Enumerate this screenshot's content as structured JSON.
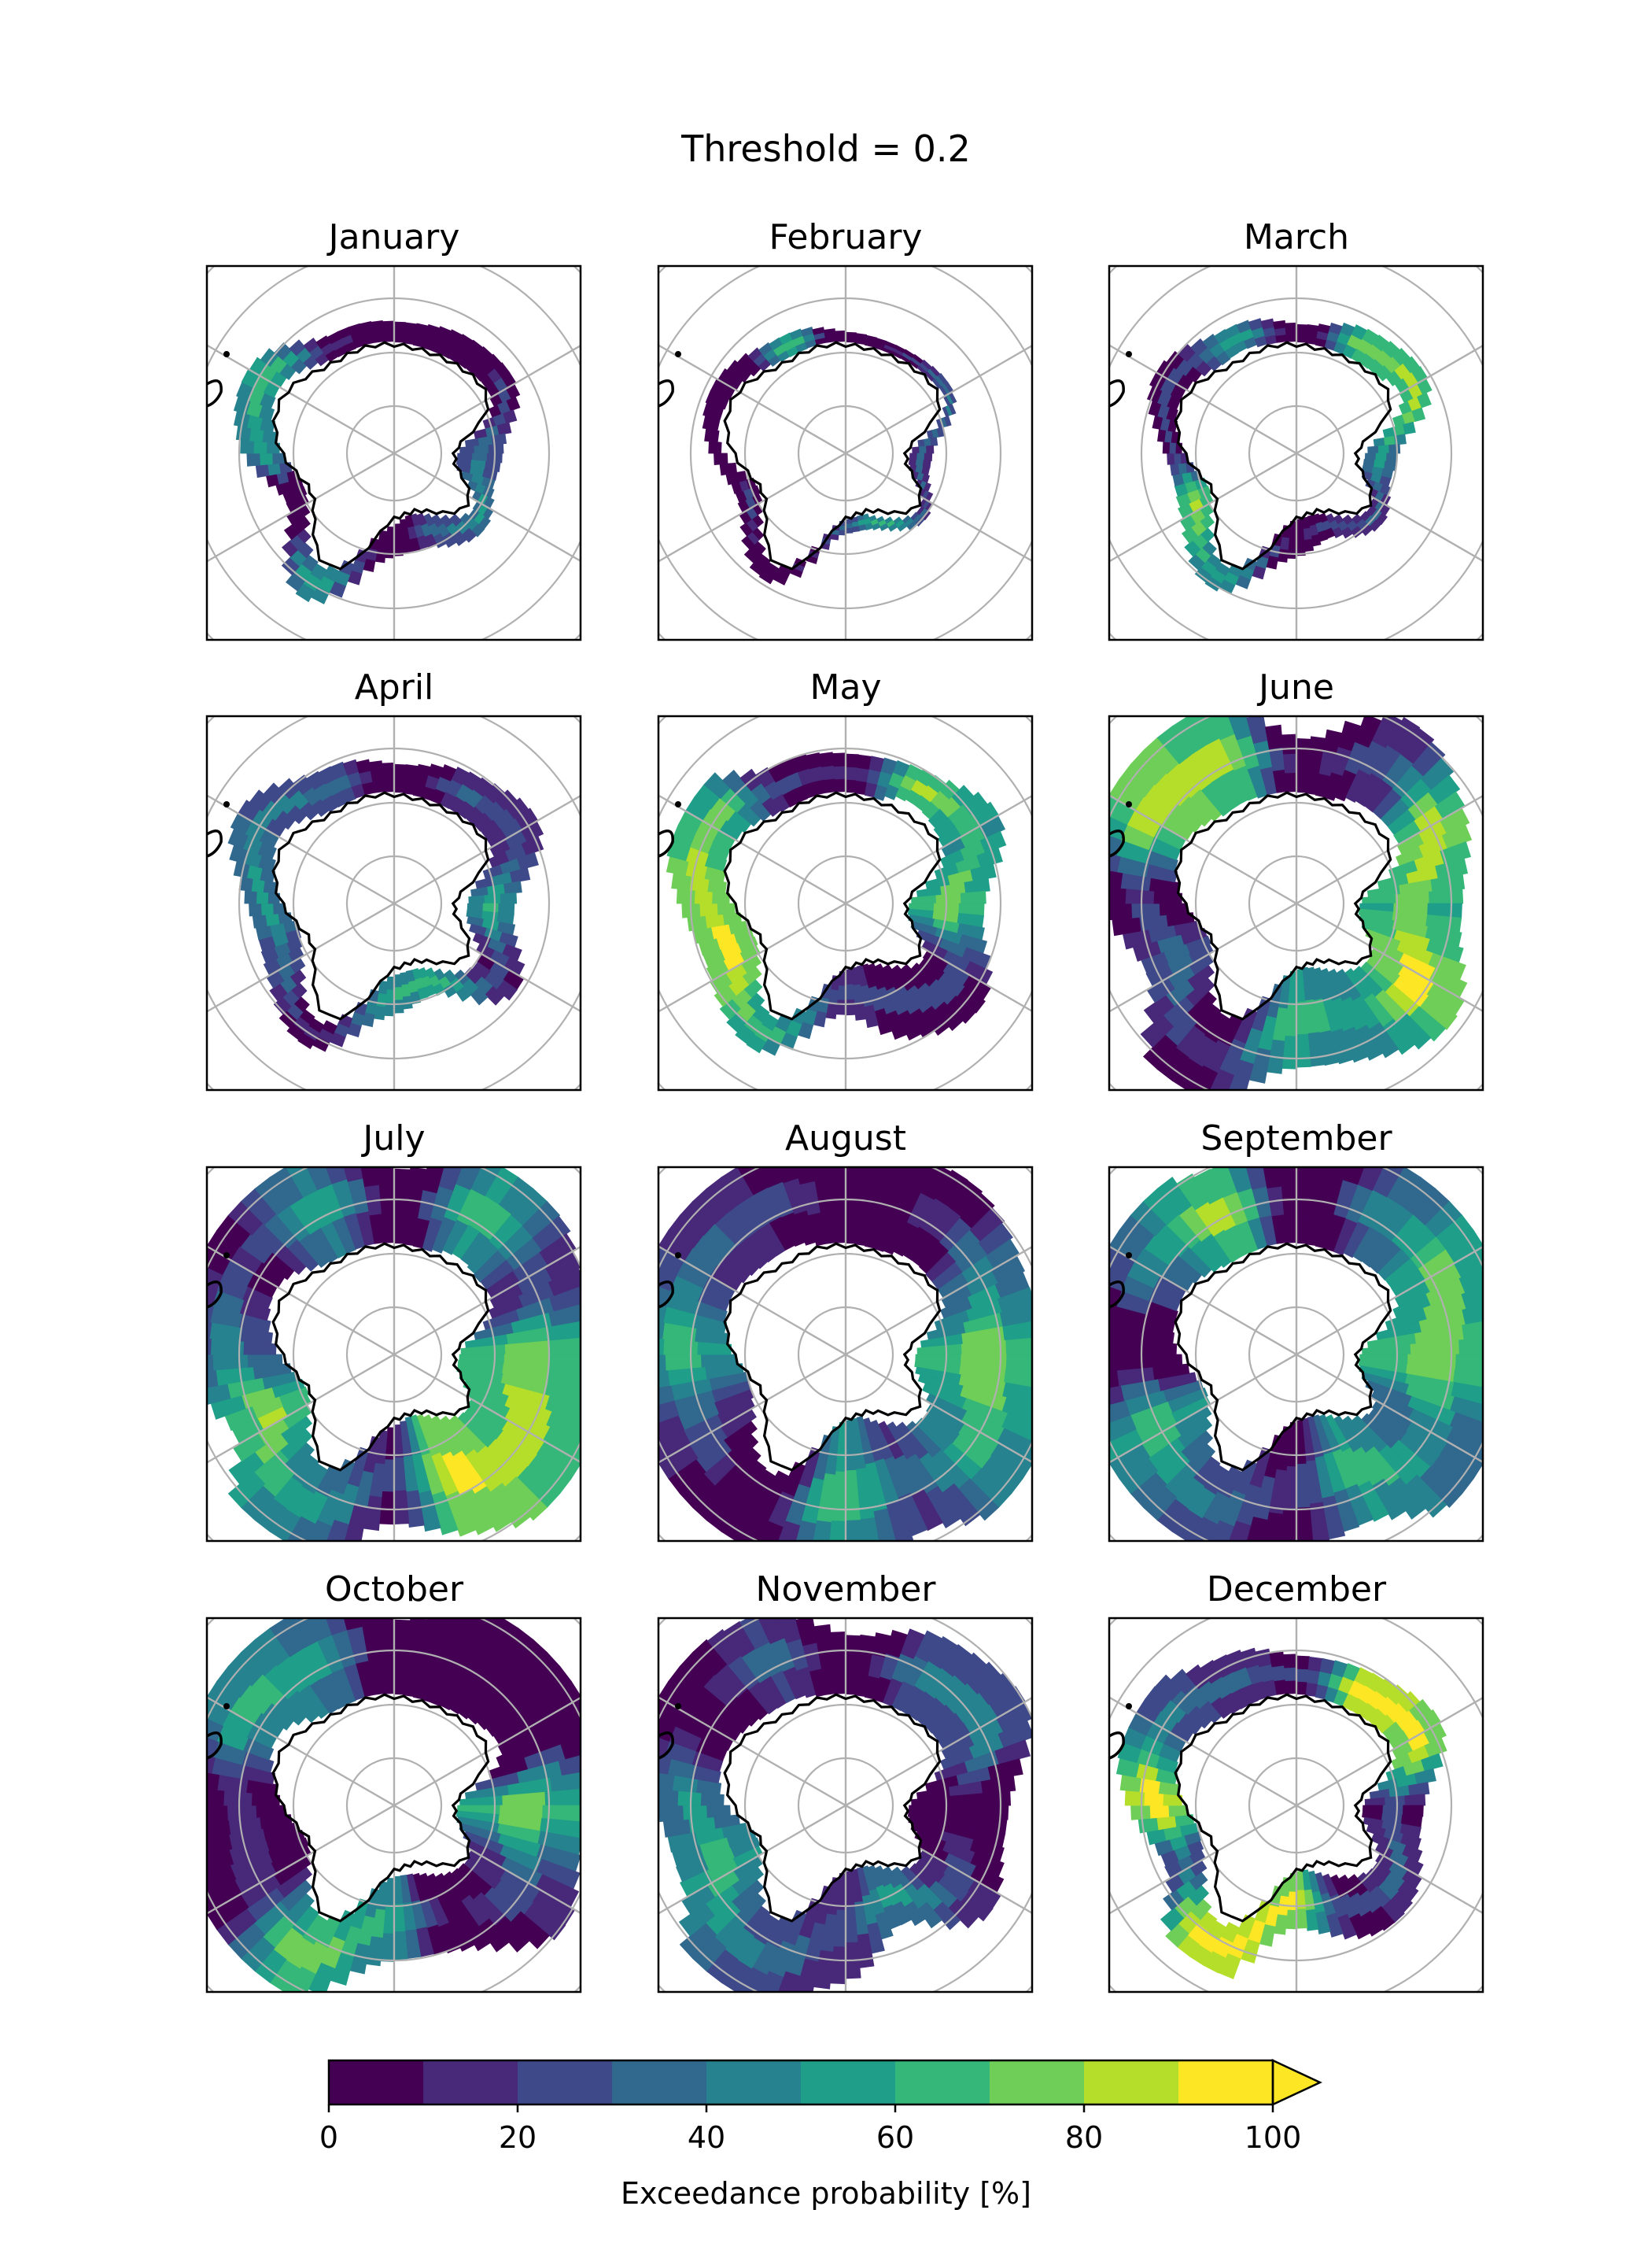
{
  "chart_data": {
    "type": "heatmap",
    "title": "Threshold = 0.2",
    "projection": "south-polar-stereographic",
    "panels": [
      {
        "title": "January",
        "months_index": 1
      },
      {
        "title": "February",
        "months_index": 2
      },
      {
        "title": "March",
        "months_index": 3
      },
      {
        "title": "April",
        "months_index": 4
      },
      {
        "title": "May",
        "months_index": 5
      },
      {
        "title": "June",
        "months_index": 6
      },
      {
        "title": "July",
        "months_index": 7
      },
      {
        "title": "August",
        "months_index": 8
      },
      {
        "title": "September",
        "months_index": 9
      },
      {
        "title": "October",
        "months_index": 10
      },
      {
        "title": "November",
        "months_index": 11
      },
      {
        "title": "December",
        "months_index": 12
      }
    ],
    "colorbar": {
      "label": "Exceedance probability [%]",
      "range": [
        0,
        100
      ],
      "ticks": [
        "0",
        "20",
        "40",
        "60",
        "80",
        "100"
      ],
      "tick_values": [
        0,
        20,
        40,
        60,
        80,
        100
      ],
      "bins": [
        0,
        10,
        20,
        30,
        40,
        50,
        60,
        70,
        80,
        90,
        100
      ],
      "extend": "max",
      "colors": [
        "#440154",
        "#482878",
        "#3e4989",
        "#31688e",
        "#26828e",
        "#1f9e89",
        "#35b779",
        "#6ece58",
        "#b5de2b",
        "#fde725"
      ]
    },
    "gridlines": true,
    "coastline": true
  }
}
